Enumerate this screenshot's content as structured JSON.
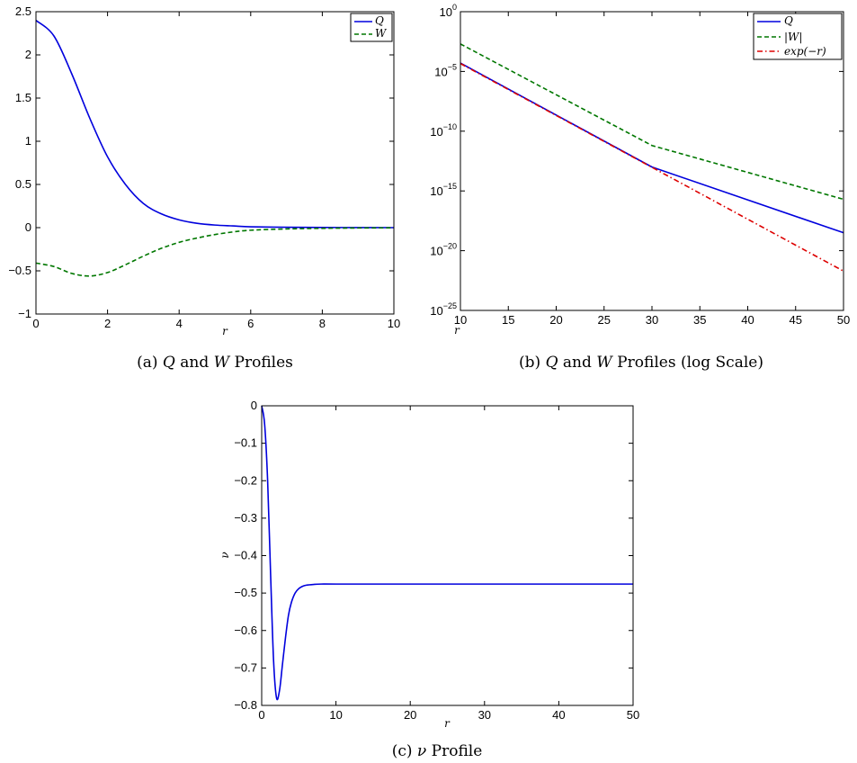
{
  "captions": {
    "a": {
      "prefix": "(a) ",
      "q": "Q",
      "and": " and ",
      "w": "W",
      "suffix": " Profiles"
    },
    "b": {
      "prefix": "(b) ",
      "q": "Q",
      "and": " and ",
      "w": "W",
      "suffix": " Profiles (log Scale)"
    },
    "c": {
      "prefix": "(c) ",
      "nu": "ν",
      "suffix": " Profile"
    }
  },
  "chart_data": [
    {
      "id": "a",
      "type": "line",
      "xlabel": "r",
      "ylabel": "",
      "xlim": [
        0,
        10
      ],
      "ylim": [
        -1,
        2.5
      ],
      "xticks": [
        0,
        2,
        4,
        6,
        8,
        10
      ],
      "yticks": [
        -1,
        -0.5,
        0,
        0.5,
        1,
        1.5,
        2,
        2.5
      ],
      "ytick_labels": [
        "−1",
        "−0.5",
        "0",
        "0.5",
        "1",
        "1.5",
        "2",
        "2.5"
      ],
      "grid": false,
      "legend": "top-right",
      "series": [
        {
          "name": "Q",
          "color": "#0000dd",
          "dash": "solid",
          "x": [
            0,
            0.5,
            1,
            1.5,
            2,
            2.5,
            3,
            3.5,
            4,
            4.5,
            5,
            5.5,
            6,
            7,
            8,
            9,
            10
          ],
          "y": [
            2.4,
            2.22,
            1.78,
            1.27,
            0.82,
            0.5,
            0.28,
            0.16,
            0.09,
            0.05,
            0.03,
            0.02,
            0.01,
            0.005,
            0.002,
            0.001,
            0
          ]
        },
        {
          "name": "W",
          "color": "#007700",
          "dash": "dashed",
          "x": [
            0,
            0.5,
            1,
            1.5,
            2,
            2.5,
            3,
            3.5,
            4,
            4.5,
            5,
            5.5,
            6,
            7,
            8,
            9,
            10
          ],
          "y": [
            -0.41,
            -0.45,
            -0.53,
            -0.56,
            -0.52,
            -0.43,
            -0.33,
            -0.24,
            -0.17,
            -0.12,
            -0.08,
            -0.05,
            -0.03,
            -0.015,
            -0.008,
            -0.004,
            -0.002
          ]
        }
      ]
    },
    {
      "id": "b",
      "type": "line",
      "xlabel": "r",
      "ylabel": "",
      "xlim": [
        10,
        50
      ],
      "ylim_log10": [
        -25,
        0
      ],
      "yscale": "log",
      "xticks": [
        10,
        15,
        20,
        25,
        30,
        35,
        40,
        45,
        50
      ],
      "yticks_log10": [
        -25,
        -20,
        -15,
        -10,
        -5,
        0
      ],
      "ytick_base": "10",
      "ytick_exps": [
        "−25",
        "−20",
        "−15",
        "−10",
        "−5",
        "0"
      ],
      "grid": false,
      "legend": "top-right",
      "series": [
        {
          "name": "Q",
          "color": "#0000dd",
          "dash": "solid",
          "x": [
            10,
            30,
            50
          ],
          "y_log10": [
            -4.3,
            -13,
            -18.5
          ]
        },
        {
          "name": "|W|",
          "color": "#007700",
          "dash": "dashed",
          "x": [
            10,
            30,
            50
          ],
          "y_log10": [
            -2.7,
            -11.2,
            -15.7
          ]
        },
        {
          "name": "exp(−r)",
          "color": "#dd0000",
          "dash": "dashdot",
          "x": [
            10,
            50
          ],
          "y_log10": [
            -4.34,
            -21.71
          ]
        }
      ]
    },
    {
      "id": "c",
      "type": "line",
      "xlabel": "r",
      "ylabel": "ν",
      "xlim": [
        0,
        50
      ],
      "ylim": [
        -0.8,
        0
      ],
      "xticks": [
        0,
        10,
        20,
        30,
        40,
        50
      ],
      "yticks": [
        -0.8,
        -0.7,
        -0.6,
        -0.5,
        -0.4,
        -0.3,
        -0.2,
        -0.1,
        0
      ],
      "ytick_labels": [
        "−0.8",
        "−0.7",
        "−0.6",
        "−0.5",
        "−0.4",
        "−0.3",
        "−0.2",
        "−0.1",
        "0"
      ],
      "grid": false,
      "legend": "none",
      "series": [
        {
          "name": "",
          "color": "#0000dd",
          "dash": "solid",
          "x": [
            0,
            0.4,
            0.8,
            1.2,
            1.6,
            2.0,
            2.4,
            2.8,
            3.2,
            3.6,
            4.0,
            4.5,
            5,
            5.5,
            6,
            7,
            8,
            10,
            20,
            30,
            40,
            50
          ],
          "y": [
            0,
            -0.05,
            -0.2,
            -0.45,
            -0.68,
            -0.78,
            -0.76,
            -0.69,
            -0.62,
            -0.56,
            -0.525,
            -0.5,
            -0.488,
            -0.482,
            -0.479,
            -0.477,
            -0.476,
            -0.476,
            -0.476,
            -0.476,
            -0.476,
            -0.476
          ]
        }
      ]
    }
  ]
}
